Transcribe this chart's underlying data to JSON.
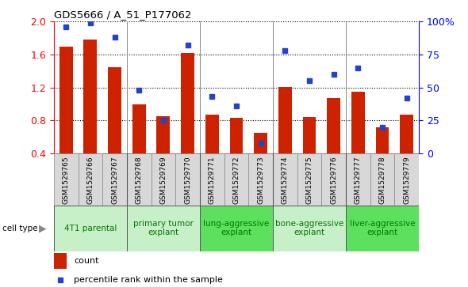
{
  "title": "GDS5666 / A_51_P177062",
  "samples": [
    "GSM1529765",
    "GSM1529766",
    "GSM1529767",
    "GSM1529768",
    "GSM1529769",
    "GSM1529770",
    "GSM1529771",
    "GSM1529772",
    "GSM1529773",
    "GSM1529774",
    "GSM1529775",
    "GSM1529776",
    "GSM1529777",
    "GSM1529778",
    "GSM1529779"
  ],
  "counts": [
    1.7,
    1.78,
    1.45,
    1.0,
    0.85,
    1.62,
    0.87,
    0.83,
    0.65,
    1.21,
    0.84,
    1.07,
    1.15,
    0.72,
    0.87
  ],
  "percentiles": [
    96,
    99,
    88,
    48,
    25,
    82,
    43,
    36,
    8,
    78,
    55,
    60,
    65,
    20,
    42
  ],
  "cell_types": [
    {
      "label": "4T1 parental",
      "start": 0,
      "end": 3,
      "color": "#c8f0c8"
    },
    {
      "label": "primary tumor\nexplant",
      "start": 3,
      "end": 6,
      "color": "#c8f0c8"
    },
    {
      "label": "lung-aggressive\nexplant",
      "start": 6,
      "end": 9,
      "color": "#5de05d"
    },
    {
      "label": "bone-aggressive\nexplant",
      "start": 9,
      "end": 12,
      "color": "#c8f0c8"
    },
    {
      "label": "liver-aggressive\nexplant",
      "start": 12,
      "end": 15,
      "color": "#5de05d"
    }
  ],
  "ylim_left": [
    0.4,
    2.0
  ],
  "ylim_right": [
    0,
    100
  ],
  "yticks_left": [
    0.4,
    0.8,
    1.2,
    1.6,
    2.0
  ],
  "yticks_right": [
    0,
    25,
    50,
    75,
    100
  ],
  "bar_color": "#cc2200",
  "marker_color": "#2244cc",
  "bar_width": 0.55,
  "label_count": "count",
  "label_percentile": "percentile rank within the sample",
  "group_boundaries": [
    3,
    6,
    9,
    12
  ],
  "cell_type_label": "cell type"
}
